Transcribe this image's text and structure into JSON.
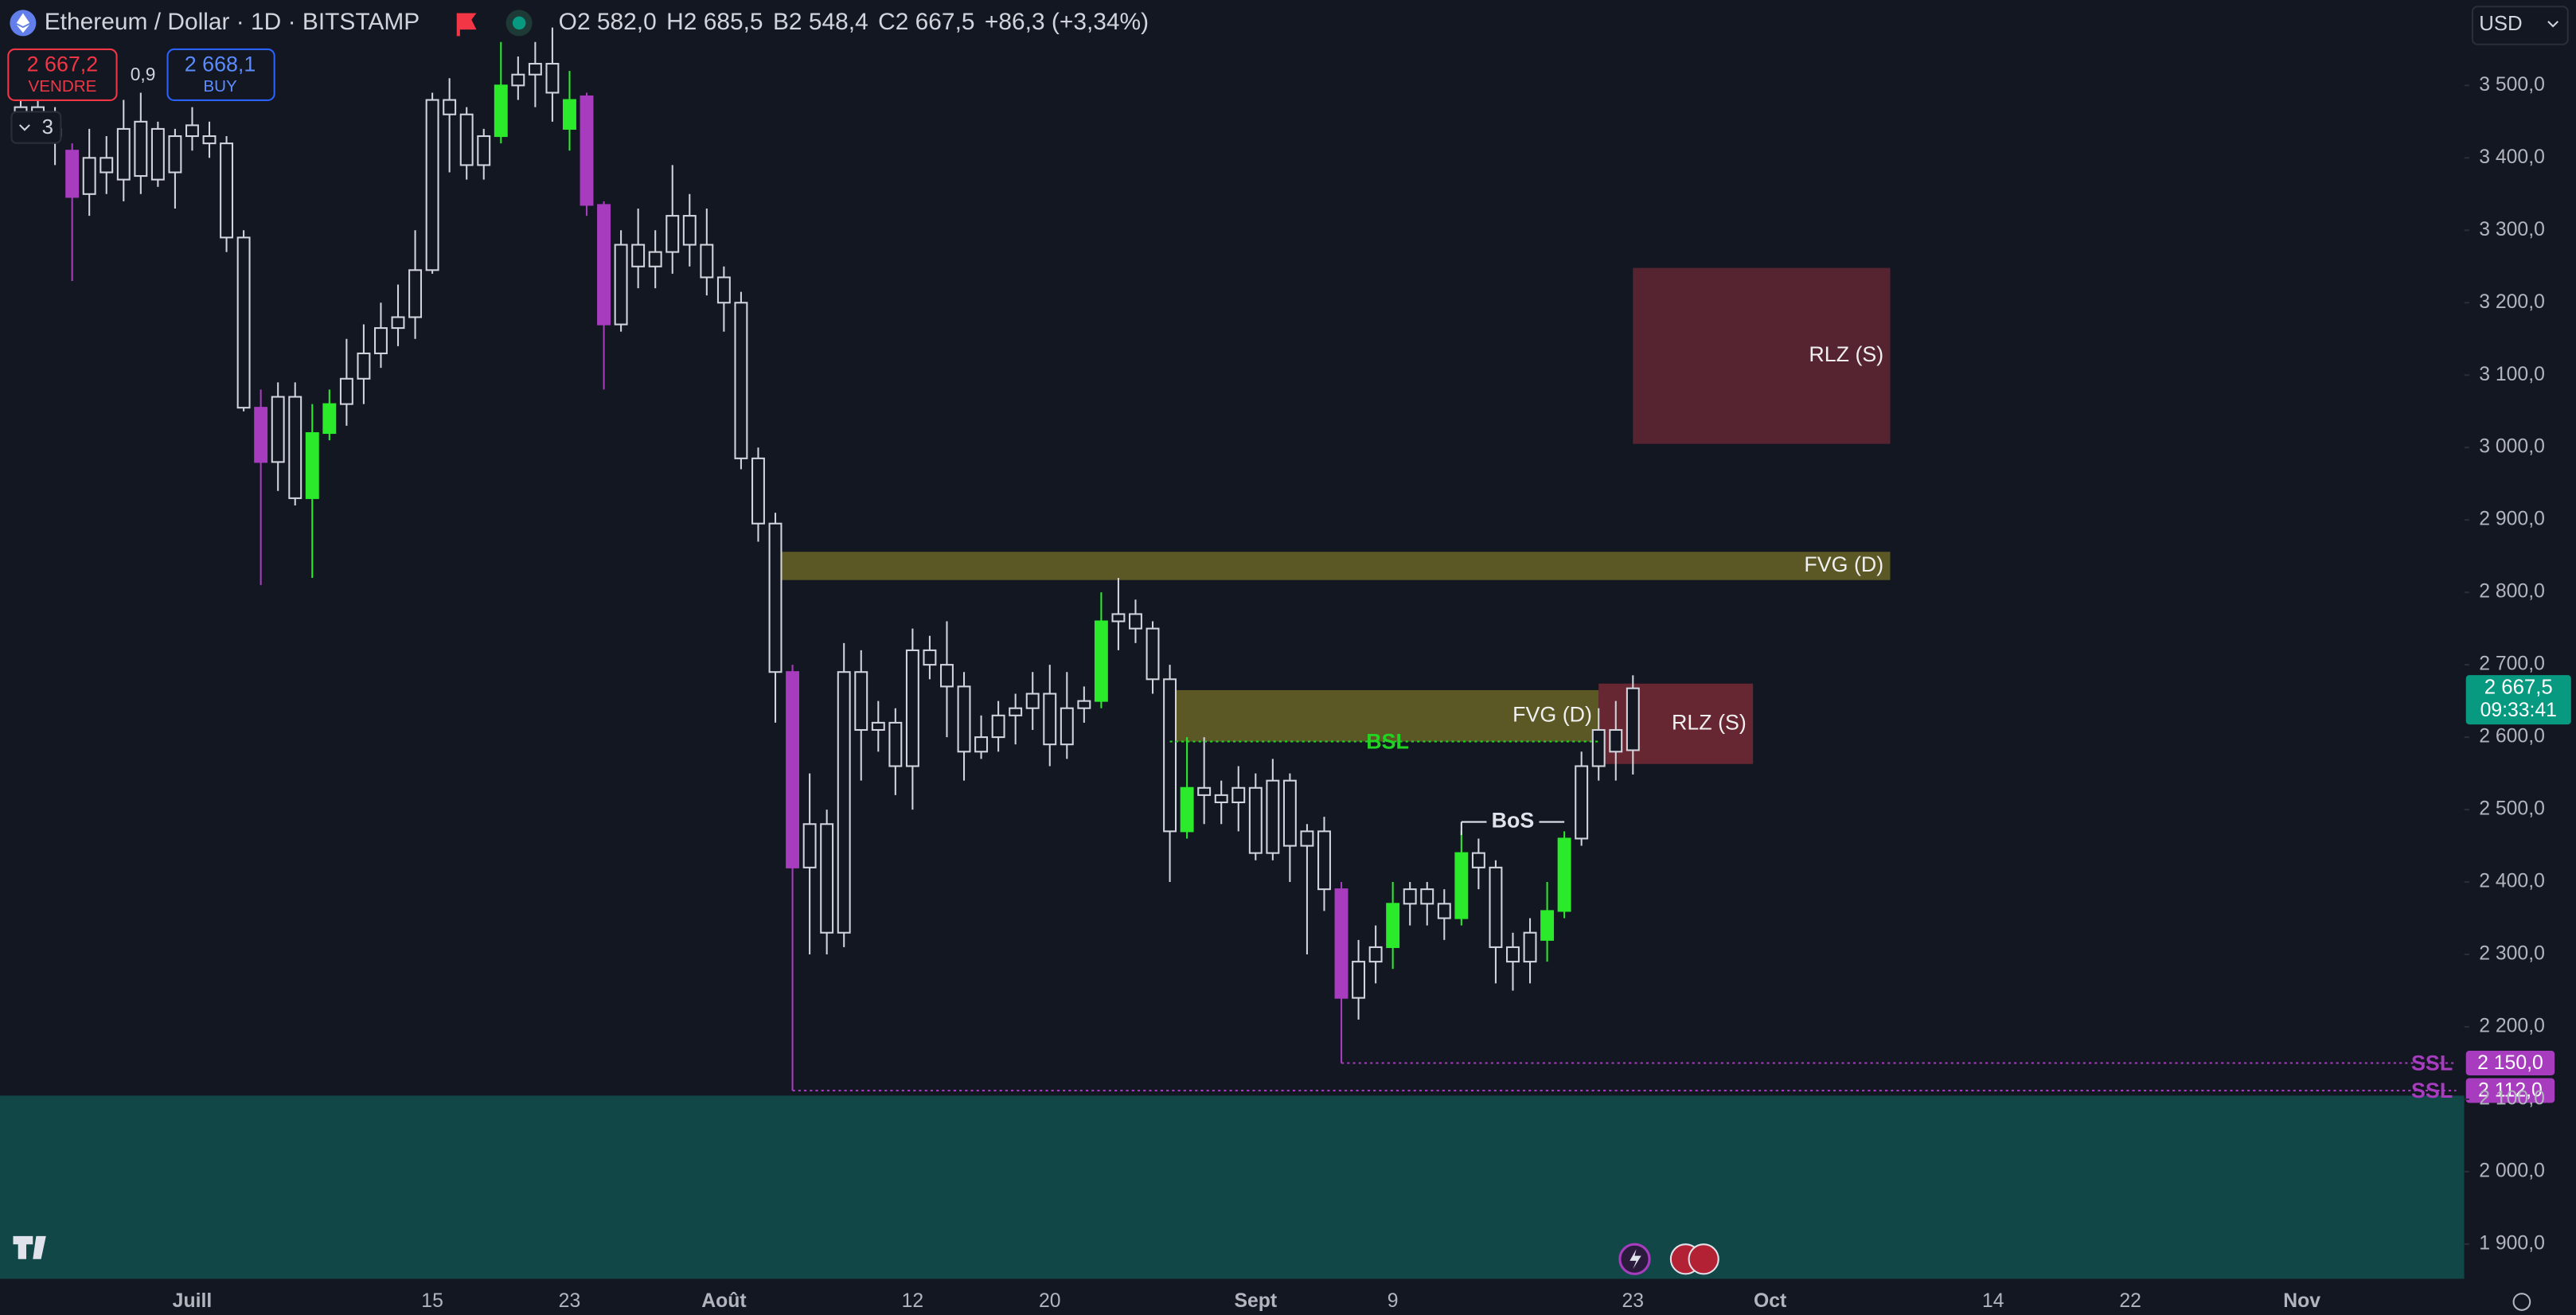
{
  "header": {
    "symbol": "Ethereum / Dollar · 1D · BITSTAMP",
    "ohlc": [
      {
        "key": "O",
        "value": "2 582,0"
      },
      {
        "key": "H",
        "value": "2 685,5"
      },
      {
        "key": "B",
        "value": "2 548,4"
      },
      {
        "key": "C",
        "value": "2 667,5"
      }
    ],
    "change": "+86,3 (+3,34%)"
  },
  "trade": {
    "sell_price": "2 667,2",
    "sell_label": "VENDRE",
    "spread": "0,9",
    "buy_price": "2 668,1",
    "buy_label": "BUY"
  },
  "indicators_count": "3",
  "currency": "USD",
  "chart_data": {
    "type": "candlestick",
    "color": "#d1d4dc",
    "categories": [
      null,
      null,
      null,
      null,
      null,
      null,
      null,
      null,
      null,
      null,
      "Juill",
      null,
      null,
      null,
      null,
      null,
      null,
      null,
      null,
      null,
      null,
      null,
      null,
      null,
      "15",
      null,
      null,
      null,
      null,
      null,
      null,
      null,
      "23",
      null,
      null,
      null,
      null,
      null,
      null,
      null,
      null,
      "Août",
      null,
      null,
      null,
      null,
      null,
      null,
      null,
      null,
      null,
      null,
      "12",
      null,
      null,
      null,
      null,
      null,
      null,
      null,
      "20",
      null,
      null,
      null,
      null,
      null,
      null,
      null,
      null,
      null,
      null,
      null,
      "Sept",
      null,
      null,
      null,
      null,
      null,
      null,
      null,
      "9",
      null,
      null,
      null,
      null,
      null,
      null,
      null,
      null,
      null,
      null,
      null,
      null,
      null,
      "23",
      null,
      null,
      null,
      null,
      null,
      null,
      null,
      "Oct",
      null,
      null,
      null,
      null,
      null,
      null,
      null,
      null,
      null,
      null,
      null,
      null,
      "14",
      null,
      null,
      null,
      null,
      null,
      null,
      null,
      "22",
      null,
      null,
      null,
      null,
      null,
      null,
      null,
      null,
      null,
      "Nov",
      null,
      null,
      null,
      null,
      null,
      null,
      null,
      null,
      null
    ],
    "open": [
      3450,
      3470,
      3430,
      3410,
      3350,
      3380,
      3370,
      3375,
      3440,
      3380,
      3430,
      3430,
      3420,
      3290,
      3055,
      2980,
      3070,
      2930,
      3020,
      3060,
      3095,
      3130,
      3165,
      3180,
      3245,
      3480,
      3460,
      3390,
      3430,
      3500,
      3515,
      3530,
      3440,
      3485,
      3335,
      3170,
      3280,
      3250,
      3270,
      3320,
      3280,
      3235,
      3200,
      2985,
      2895,
      2690,
      2420,
      2480,
      2330,
      2690,
      2610,
      2620,
      2560,
      2720,
      2700,
      2670,
      2580,
      2600,
      2630,
      2640,
      2660,
      2590,
      2640,
      2650,
      2760,
      2770,
      2750,
      2680,
      2470,
      2530,
      2520,
      2510,
      2530,
      2440,
      2540,
      2450,
      2470,
      2390,
      2240,
      2290,
      2310,
      2370,
      2390,
      2370,
      2350,
      2440,
      2420,
      2310,
      2290,
      2320,
      2360,
      2460,
      2560,
      2610,
      2582,
      null,
      null,
      null,
      null,
      null,
      null,
      null,
      null,
      null,
      null,
      null,
      null,
      null,
      null,
      null,
      null,
      null,
      null,
      null,
      null,
      null,
      null,
      null,
      null,
      null,
      null,
      null,
      null,
      null,
      null,
      null,
      null,
      null,
      null,
      null,
      null,
      null,
      null,
      null,
      null,
      null,
      null,
      null,
      null,
      null,
      null,
      null,
      null
    ],
    "high": [
      3500,
      3520,
      3470,
      3420,
      3440,
      3430,
      3480,
      3490,
      3450,
      3440,
      3470,
      3450,
      3430,
      3300,
      3080,
      3090,
      3090,
      3060,
      3080,
      3150,
      3170,
      3200,
      3225,
      3300,
      3490,
      3510,
      3470,
      3440,
      3560,
      3540,
      3560,
      3580,
      3520,
      3490,
      3340,
      3300,
      3330,
      3300,
      3390,
      3350,
      3330,
      3250,
      3215,
      3000,
      2910,
      2700,
      2550,
      2500,
      2730,
      2720,
      2650,
      2640,
      2750,
      2740,
      2760,
      2690,
      2630,
      2650,
      2660,
      2690,
      2700,
      2690,
      2670,
      2800,
      2820,
      2790,
      2760,
      2700,
      2600,
      2600,
      2540,
      2560,
      2550,
      2570,
      2550,
      2480,
      2490,
      2400,
      2320,
      2340,
      2400,
      2400,
      2400,
      2390,
      2470,
      2460,
      2430,
      2330,
      2350,
      2400,
      2470,
      2580,
      2640,
      2650,
      2685.5,
      null,
      null,
      null,
      null,
      null,
      null,
      null,
      null,
      null,
      null,
      null,
      null,
      null,
      null,
      null,
      null,
      null,
      null,
      null,
      null,
      null,
      null,
      null,
      null,
      null,
      null,
      null,
      null,
      null,
      null,
      null,
      null,
      null,
      null,
      null,
      null,
      null,
      null,
      null,
      null,
      null,
      null,
      null,
      null,
      null,
      null,
      null,
      null
    ],
    "low": [
      3430,
      3440,
      3390,
      3230,
      3320,
      3350,
      3340,
      3350,
      3360,
      3330,
      3410,
      3400,
      3270,
      3050,
      2810,
      2940,
      2920,
      2820,
      3010,
      3030,
      3060,
      3110,
      3140,
      3150,
      3240,
      3380,
      3370,
      3370,
      3420,
      3480,
      3470,
      3450,
      3410,
      3320,
      3080,
      3160,
      3220,
      3220,
      3240,
      3250,
      3210,
      3160,
      2970,
      2870,
      2620,
      2112,
      2300,
      2300,
      2310,
      2540,
      2580,
      2520,
      2500,
      2680,
      2600,
      2540,
      2570,
      2580,
      2590,
      2610,
      2560,
      2570,
      2620,
      2640,
      2720,
      2730,
      2660,
      2400,
      2460,
      2480,
      2480,
      2470,
      2430,
      2430,
      2400,
      2300,
      2360,
      2150,
      2210,
      2260,
      2280,
      2340,
      2340,
      2320,
      2340,
      2390,
      2260,
      2250,
      2260,
      2290,
      2350,
      2450,
      2540,
      2540,
      2548.4,
      null,
      null,
      null,
      null,
      null,
      null,
      null,
      null,
      null,
      null,
      null,
      null,
      null,
      null,
      null,
      null,
      null,
      null,
      null,
      null,
      null,
      null,
      null,
      null,
      null,
      null,
      null,
      null,
      null,
      null,
      null,
      null,
      null,
      null,
      null,
      null,
      null,
      null,
      null,
      null,
      null,
      null,
      null,
      null,
      null,
      null,
      null,
      null
    ],
    "close": [
      3470,
      3460,
      3440,
      3346,
      3400,
      3400,
      3440,
      3450,
      3370,
      3430,
      3445,
      3420,
      3290,
      3055,
      2980,
      3070,
      2930,
      3020,
      3060,
      3095,
      3130,
      3165,
      3180,
      3245,
      3480,
      3460,
      3390,
      3430,
      3500,
      3515,
      3530,
      3490,
      3480,
      3335,
      3170,
      3280,
      3250,
      3270,
      3320,
      3280,
      3235,
      3200,
      2985,
      2895,
      2690,
      2420,
      2480,
      2330,
      2690,
      2610,
      2620,
      2560,
      2720,
      2700,
      2670,
      2580,
      2600,
      2630,
      2640,
      2660,
      2590,
      2640,
      2650,
      2760,
      2770,
      2750,
      2680,
      2470,
      2530,
      2520,
      2510,
      2530,
      2440,
      2540,
      2450,
      2470,
      2390,
      2240,
      2290,
      2310,
      2370,
      2390,
      2370,
      2350,
      2440,
      2420,
      2310,
      2290,
      2330,
      2360,
      2460,
      2560,
      2610,
      2580,
      2667.5,
      null,
      null,
      null,
      null,
      null,
      null,
      null,
      null,
      null,
      null,
      null,
      null,
      null,
      null,
      null,
      null,
      null,
      null,
      null,
      null,
      null,
      null,
      null,
      null,
      null,
      null,
      null,
      null,
      null,
      null,
      null,
      null,
      null,
      null,
      null,
      null,
      null,
      null,
      null,
      null,
      null,
      null,
      null,
      null,
      null,
      null,
      null,
      null
    ],
    "colors": [
      null,
      null,
      null,
      "#a83cbf",
      null,
      null,
      null,
      null,
      null,
      null,
      null,
      null,
      null,
      null,
      "#a83cbf",
      null,
      null,
      "#2bea2b",
      "#2bea2b",
      null,
      null,
      null,
      null,
      null,
      null,
      null,
      null,
      null,
      "#2bea2b",
      null,
      null,
      null,
      "#2bea2b",
      "#a83cbf",
      "#a83cbf",
      null,
      null,
      null,
      null,
      null,
      null,
      null,
      null,
      null,
      null,
      "#a83cbf",
      null,
      null,
      null,
      null,
      null,
      null,
      null,
      null,
      null,
      null,
      null,
      null,
      null,
      null,
      null,
      null,
      null,
      "#2bea2b",
      null,
      null,
      null,
      null,
      "#2bea2b",
      null,
      null,
      null,
      null,
      null,
      null,
      null,
      null,
      "#a83cbf",
      null,
      null,
      "#2bea2b",
      null,
      null,
      null,
      "#2bea2b",
      null,
      null,
      null,
      null,
      "#2bea2b",
      "#2bea2b",
      null,
      null,
      null,
      null,
      null,
      null,
      null,
      null,
      null,
      null,
      null,
      null,
      null,
      null,
      null,
      null,
      null,
      null,
      null,
      null,
      null,
      null,
      null,
      null,
      null,
      null,
      null,
      null,
      null,
      null,
      null,
      null,
      null,
      null,
      null,
      null,
      null,
      null,
      null,
      null,
      null,
      null,
      null,
      null,
      null,
      null,
      null,
      null,
      null,
      null,
      null,
      null
    ],
    "ylim": [
      1852,
      3618
    ],
    "yticks": [
      {
        "value": 1900,
        "label": "1 900,0"
      },
      {
        "value": 2000,
        "label": "2 000,0"
      },
      {
        "value": 2100,
        "label": "2 100,0"
      },
      {
        "value": 2200,
        "label": "2 200,0"
      },
      {
        "value": 2300,
        "label": "2 300,0"
      },
      {
        "value": 2400,
        "label": "2 400,0"
      },
      {
        "value": 2500,
        "label": "2 500,0"
      },
      {
        "value": 2600,
        "label": "2 600,0"
      },
      {
        "value": 2700,
        "label": "2 700,0"
      },
      {
        "value": 2800,
        "label": "2 800,0"
      },
      {
        "value": 2900,
        "label": "2 900,0"
      },
      {
        "value": 3000,
        "label": "3 000,0"
      },
      {
        "value": 3100,
        "label": "3 100,0"
      },
      {
        "value": 3200,
        "label": "3 200,0"
      },
      {
        "value": 3300,
        "label": "3 300,0"
      },
      {
        "value": 3400,
        "label": "3 400,0"
      },
      {
        "value": 3500,
        "label": "3 500,0"
      }
    ],
    "grid": false,
    "band": {
      "y": [
        1852,
        2105
      ],
      "color": "#124747"
    },
    "zones": [
      {
        "label": "RLZ (S)",
        "x": [
          94,
          109
        ],
        "y": [
          3005,
          3248
        ],
        "color": "#5a2531"
      },
      {
        "label": "FVG (D)",
        "x": [
          44,
          109
        ],
        "y": [
          2817,
          2856
        ],
        "color": "#5f5c26"
      },
      {
        "label": "FVG (D)",
        "x": [
          67,
          92
        ],
        "y": [
          2594,
          2665
        ],
        "color": "#5f5c26"
      },
      {
        "label": "RLZ (S)",
        "x": [
          92,
          101
        ],
        "y": [
          2563,
          2674
        ],
        "color": "#6b2834"
      }
    ],
    "levels": [
      {
        "label": "BSL",
        "value": 2594,
        "x": [
          67,
          92
        ],
        "color": "#22d422",
        "style": "dotted"
      },
      {
        "label": "BoS",
        "value": 2483,
        "x": [
          84,
          90
        ],
        "color": "#e0e3eb",
        "style": "gap"
      },
      {
        "label": "SSL",
        "value": 2150,
        "x": [
          77,
          142
        ],
        "color": "#a83cbf",
        "style": "dotted",
        "tag": "2 150,0"
      },
      {
        "label": "SSL",
        "value": 2112,
        "x": [
          45,
          142
        ],
        "color": "#a83cbf",
        "style": "dotted",
        "tag": "2 112,0"
      }
    ],
    "last_price": {
      "value": 2667.5,
      "label": "2 667,5",
      "countdown": "09:33:41",
      "color": "#089981"
    }
  }
}
